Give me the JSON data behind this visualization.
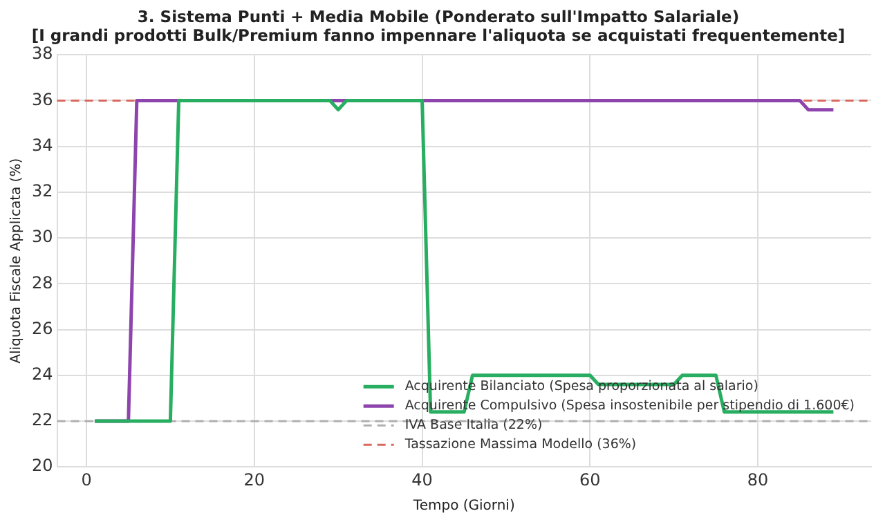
{
  "chart_data": {
    "type": "line",
    "title": "3. Sistema Punti + Media Mobile (Ponderato sull'Impatto Salariale)",
    "subtitle": "[I grandi prodotti Bulk/Premium fanno impennare l'aliquota se acquistati frequentemente]",
    "xlabel": "Tempo (Giorni)",
    "ylabel": "Aliquota Fiscale Applicata (%)",
    "xlim": [
      -3.5,
      93.5
    ],
    "xticks": [
      0,
      20,
      40,
      60,
      80
    ],
    "ylim": [
      20,
      38
    ],
    "yticks": [
      20,
      22,
      24,
      26,
      28,
      30,
      32,
      34,
      36,
      38
    ],
    "grid": true,
    "legend": "bottom right",
    "marker": "none",
    "line_style": "solid",
    "series": [
      {
        "name": "Acquirente Bilanciato (Spesa proporzionata al salario)",
        "color": "#27ae60",
        "x": [
          1,
          10,
          11,
          29,
          30,
          31,
          40,
          41,
          45,
          46,
          60,
          61,
          70,
          71,
          75,
          76,
          89
        ],
        "values": [
          22,
          22,
          36,
          36,
          35.6,
          36,
          36,
          22.4,
          22.4,
          24,
          24,
          23.6,
          23.6,
          24,
          24,
          22.4,
          22.4
        ]
      },
      {
        "name": "Acquirente Compulsivo (Spesa insostenibile per stipendio di 1.600€)",
        "color": "#8e44ad",
        "x": [
          1,
          5,
          6,
          85,
          86,
          89
        ],
        "values": [
          22,
          22,
          36,
          36,
          35.6,
          35.6
        ]
      }
    ],
    "ref_lines": [
      {
        "axis": "y",
        "value": 22,
        "label": "IVA Base Italia (22%)",
        "color": "#b0b0b0",
        "line_style": "dashed"
      },
      {
        "axis": "y",
        "value": 36,
        "label": "Tassazione Massima Modello (36%)",
        "color": "#d9695f",
        "line_style": "dashed"
      }
    ]
  }
}
